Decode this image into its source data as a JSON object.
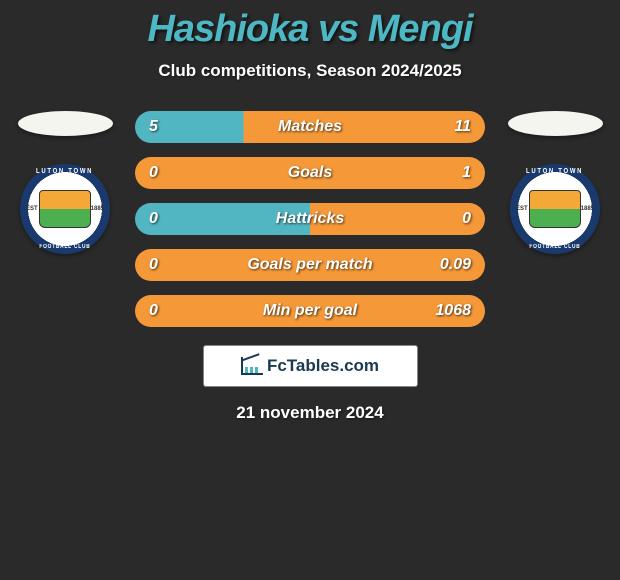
{
  "title": "Hashioka vs Mengi",
  "subtitle": "Club competitions, Season 2024/2025",
  "left_club": {
    "name": "Luton Town",
    "badge_top": "LUTON TOWN",
    "badge_bottom": "FOOTBALL CLUB",
    "est": "EST",
    "year": "1885"
  },
  "right_club": {
    "name": "Luton Town",
    "badge_top": "LUTON TOWN",
    "badge_bottom": "FOOTBALL CLUB",
    "est": "EST",
    "year": "1885"
  },
  "stats": [
    {
      "label": "Matches",
      "left_value": "5",
      "right_value": "11",
      "left_pct": 31,
      "left_color": "#52b6c2",
      "right_color": "#f49838"
    },
    {
      "label": "Goals",
      "left_value": "0",
      "right_value": "1",
      "left_pct": 0,
      "left_color": "#52b6c2",
      "right_color": "#f49838"
    },
    {
      "label": "Hattricks",
      "left_value": "0",
      "right_value": "0",
      "left_pct": 50,
      "left_color": "#52b6c2",
      "right_color": "#f49838"
    },
    {
      "label": "Goals per match",
      "left_value": "0",
      "right_value": "0.09",
      "left_pct": 0,
      "left_color": "#52b6c2",
      "right_color": "#f49838"
    },
    {
      "label": "Min per goal",
      "left_value": "0",
      "right_value": "1068",
      "left_pct": 0,
      "left_color": "#52b6c2",
      "right_color": "#f49838"
    }
  ],
  "brand": "FcTables.com",
  "date": "21 november 2024",
  "colors": {
    "background": "#2a2a2a",
    "title": "#4db8c4",
    "text": "#ffffff"
  }
}
